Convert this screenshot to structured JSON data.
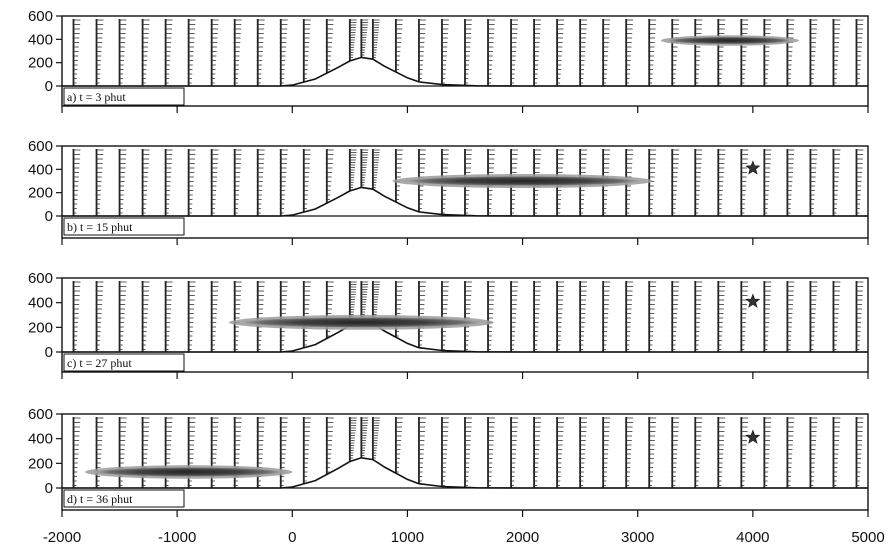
{
  "chart_data": {
    "type": "multi-panel-profile",
    "xlim": [
      -2000,
      5000
    ],
    "ylim": [
      0,
      600
    ],
    "x_ticks": [
      -2000,
      -1000,
      0,
      1000,
      2000,
      3000,
      4000,
      5000
    ],
    "y_ticks": [
      0,
      200,
      400,
      600
    ],
    "terrain": {
      "x": [
        -2000,
        -100,
        0,
        200,
        400,
        500,
        600,
        700,
        800,
        1000,
        1100,
        1300,
        1600,
        2000,
        5000
      ],
      "y": [
        0,
        0,
        8,
        60,
        160,
        215,
        245,
        230,
        170,
        70,
        35,
        12,
        2,
        0,
        0
      ]
    },
    "vertical_profiles_x": [
      -1900,
      -1700,
      -1500,
      -1300,
      -1100,
      -900,
      -700,
      -500,
      -300,
      -100,
      100,
      300,
      500,
      600,
      700,
      900,
      1100,
      1300,
      1500,
      1700,
      1900,
      2100,
      2300,
      2500,
      2700,
      2900,
      3100,
      3300,
      3500,
      3700,
      3900,
      4100,
      4300,
      4500,
      4700,
      4900
    ],
    "marker": {
      "x": 4000,
      "y": 410
    },
    "panels": [
      {
        "label": "a) t = 3 phut",
        "cloud": {
          "x_center": 3800,
          "y_center": 390,
          "x_halfwidth": 600,
          "y_halfheight": 45
        },
        "marker": false
      },
      {
        "label": "b) t = 15 phut",
        "cloud": {
          "x_center": 2000,
          "y_center": 300,
          "x_halfwidth": 1130,
          "y_halfheight": 60
        },
        "marker": true
      },
      {
        "label": "c) t = 27 phut",
        "cloud": {
          "x_center": 600,
          "y_center": 240,
          "x_halfwidth": 1150,
          "y_halfheight": 60
        },
        "marker": true
      },
      {
        "label": "d) t = 36 phut",
        "cloud": {
          "x_center": -900,
          "y_center": 130,
          "x_halfwidth": 900,
          "y_halfheight": 55
        },
        "marker": true
      }
    ]
  }
}
